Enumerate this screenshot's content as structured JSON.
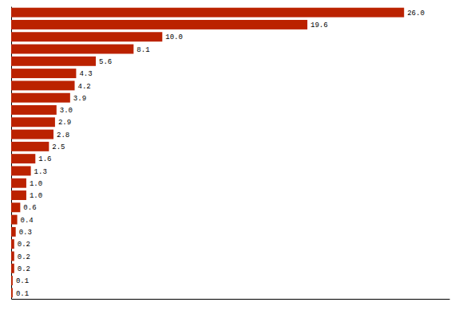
{
  "chart_data": {
    "type": "bar",
    "orientation": "horizontal",
    "categories": [
      null,
      null,
      null,
      null,
      null,
      null,
      null,
      null,
      null,
      null,
      null,
      null,
      null,
      null,
      null,
      null,
      null,
      null,
      null,
      null,
      null,
      null,
      null,
      null
    ],
    "values": [
      26.0,
      19.6,
      10.0,
      8.1,
      5.6,
      4.3,
      4.2,
      3.9,
      3.0,
      2.9,
      2.8,
      2.5,
      1.6,
      1.3,
      1.0,
      1.0,
      0.6,
      0.4,
      0.3,
      0.2,
      0.2,
      0.2,
      0.1,
      0.1
    ],
    "value_labels": [
      "26.0",
      "19.6",
      "10.0",
      "8.1",
      "5.6",
      "4.3",
      "4.2",
      "3.9",
      "3.0",
      "2.9",
      "2.8",
      "2.5",
      "1.6",
      "1.3",
      "1.0",
      "1.0",
      "0.6",
      "0.4",
      "0.3",
      "0.2",
      "0.2",
      "0.2",
      "0.1",
      "0.1"
    ],
    "color": "#bb2200",
    "xlim": [
      0,
      29
    ],
    "data_labels": true,
    "tick_labels": false,
    "grid": false
  }
}
